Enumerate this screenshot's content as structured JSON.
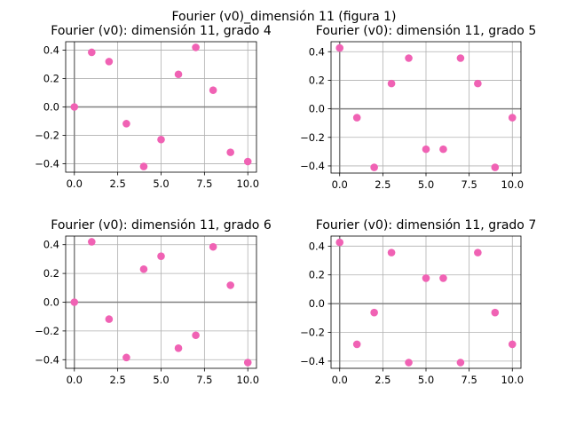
{
  "figure": {
    "suptitle": "Fourier (v0)_dimensión 11 (figura 1)"
  },
  "style": {
    "point_color": "#f062b4",
    "grid_color": "#b0b0b0",
    "zero_line_color": "#808080"
  },
  "chart_data": [
    {
      "type": "scatter",
      "title": "Fourier (v0): dimensión 11, grado 4",
      "xlabel": "",
      "ylabel": "",
      "x": [
        0,
        1,
        2,
        3,
        4,
        5,
        6,
        7,
        8,
        9,
        10
      ],
      "y": [
        0.0,
        0.385,
        0.32,
        -0.118,
        -0.42,
        -0.23,
        0.23,
        0.42,
        0.118,
        -0.32,
        -0.385
      ],
      "xlim": [
        -0.5,
        10.5
      ],
      "ylim": [
        -0.46,
        0.46
      ],
      "xticks": [
        0,
        2.5,
        5,
        7.5,
        10
      ],
      "xticklabels": [
        "0.0",
        "2.5",
        "5.0",
        "7.5",
        "10.0"
      ],
      "yticks": [
        -0.4,
        -0.2,
        0,
        0.2,
        0.4
      ],
      "yticklabels": [
        "−0.4",
        "−0.2",
        "0.0",
        "0.2",
        "0.4"
      ],
      "grid": true,
      "zero_lines": true
    },
    {
      "type": "scatter",
      "title": "Fourier (v0): dimensión 11, grado 5",
      "xlabel": "",
      "ylabel": "",
      "x": [
        0,
        1,
        2,
        3,
        4,
        5,
        6,
        7,
        8,
        9,
        10
      ],
      "y": [
        0.426,
        -0.062,
        -0.41,
        0.177,
        0.355,
        -0.283,
        -0.283,
        0.355,
        0.177,
        -0.41,
        -0.062
      ],
      "xlim": [
        -0.5,
        10.5
      ],
      "ylim": [
        -0.45,
        0.47
      ],
      "xticks": [
        0,
        2.5,
        5,
        7.5,
        10
      ],
      "xticklabels": [
        "0.0",
        "2.5",
        "5.0",
        "7.5",
        "10.0"
      ],
      "yticks": [
        -0.4,
        -0.2,
        0,
        0.2,
        0.4
      ],
      "yticklabels": [
        "−0.4",
        "−0.2",
        "0.0",
        "0.2",
        "0.4"
      ],
      "grid": true,
      "zero_lines": true
    },
    {
      "type": "scatter",
      "title": "Fourier (v0): dimensión 11, grado 6",
      "xlabel": "",
      "ylabel": "",
      "x": [
        0,
        1,
        2,
        3,
        4,
        5,
        6,
        7,
        8,
        9,
        10
      ],
      "y": [
        0.0,
        0.42,
        -0.118,
        -0.385,
        0.23,
        0.32,
        -0.32,
        -0.23,
        0.385,
        0.118,
        -0.42
      ],
      "xlim": [
        -0.5,
        10.5
      ],
      "ylim": [
        -0.46,
        0.46
      ],
      "xticks": [
        0,
        2.5,
        5,
        7.5,
        10
      ],
      "xticklabels": [
        "0.0",
        "2.5",
        "5.0",
        "7.5",
        "10.0"
      ],
      "yticks": [
        -0.4,
        -0.2,
        0,
        0.2,
        0.4
      ],
      "yticklabels": [
        "−0.4",
        "−0.2",
        "0.0",
        "0.2",
        "0.4"
      ],
      "grid": true,
      "zero_lines": true
    },
    {
      "type": "scatter",
      "title": "Fourier (v0): dimensión 11, grado 7",
      "xlabel": "",
      "ylabel": "",
      "x": [
        0,
        1,
        2,
        3,
        4,
        5,
        6,
        7,
        8,
        9,
        10
      ],
      "y": [
        0.426,
        -0.283,
        -0.062,
        0.355,
        -0.41,
        0.177,
        0.177,
        -0.41,
        0.355,
        -0.062,
        -0.283
      ],
      "xlim": [
        -0.5,
        10.5
      ],
      "ylim": [
        -0.45,
        0.47
      ],
      "xticks": [
        0,
        2.5,
        5,
        7.5,
        10
      ],
      "xticklabels": [
        "0.0",
        "2.5",
        "5.0",
        "7.5",
        "10.0"
      ],
      "yticks": [
        -0.4,
        -0.2,
        0,
        0.2,
        0.4
      ],
      "yticklabels": [
        "−0.4",
        "−0.2",
        "0.0",
        "0.2",
        "0.4"
      ],
      "grid": true,
      "zero_lines": true
    }
  ]
}
